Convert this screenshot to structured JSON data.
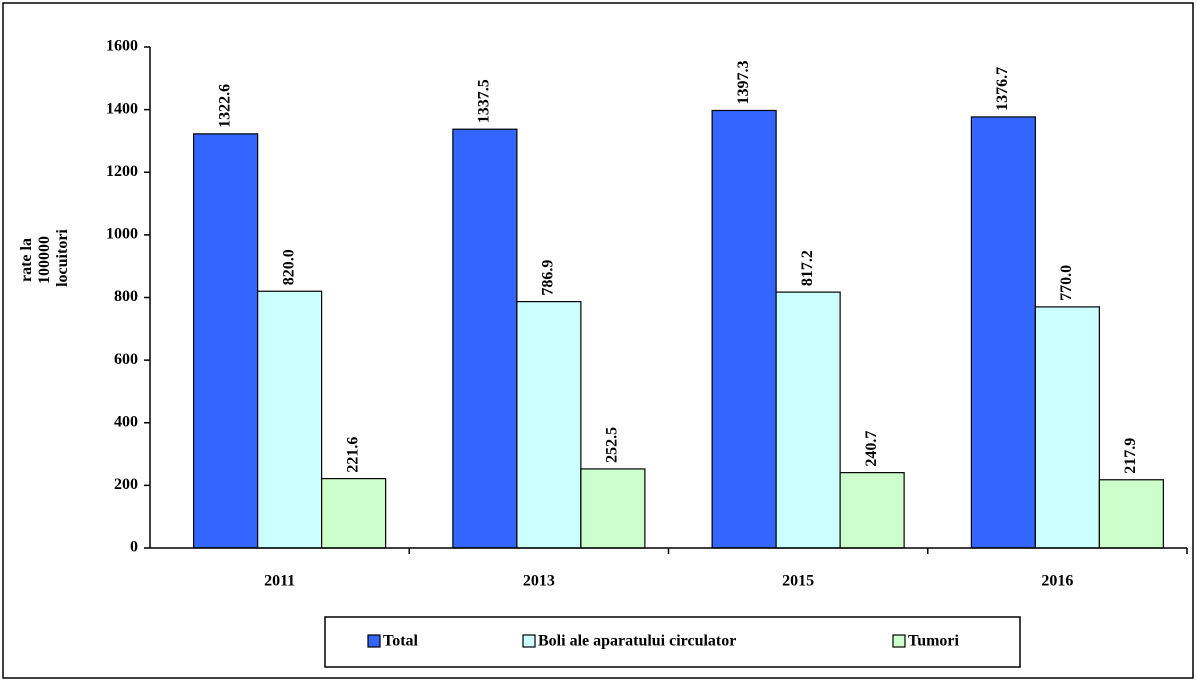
{
  "chart_data": {
    "type": "bar",
    "y_label": [
      "rate la",
      "100000",
      "locuitori"
    ],
    "categories": [
      "2011",
      "2013",
      "2015",
      "2016"
    ],
    "series": [
      {
        "name": "Total",
        "color": "#3366ff",
        "values": [
          1322.6,
          1337.5,
          1397.3,
          1376.7
        ],
        "value_labels": [
          "1322.6",
          "1337.5",
          "1397.3",
          "1376.7"
        ]
      },
      {
        "name": "Boli ale aparatului circulator",
        "color": "#ccffff",
        "values": [
          820.0,
          786.9,
          817.2,
          770.0
        ],
        "value_labels": [
          "820.0",
          "786.9",
          "817.2",
          "770.0"
        ]
      },
      {
        "name": "Tumori",
        "color": "#ccffcc",
        "values": [
          221.6,
          252.5,
          240.7,
          217.9
        ],
        "value_labels": [
          "221.6",
          "252.5",
          "240.7",
          "217.9"
        ]
      }
    ],
    "ylim": [
      0,
      1600
    ],
    "yticks": [
      0,
      200,
      400,
      600,
      800,
      1000,
      1200,
      1400,
      1600
    ],
    "grid": false,
    "legend": "bottom"
  }
}
